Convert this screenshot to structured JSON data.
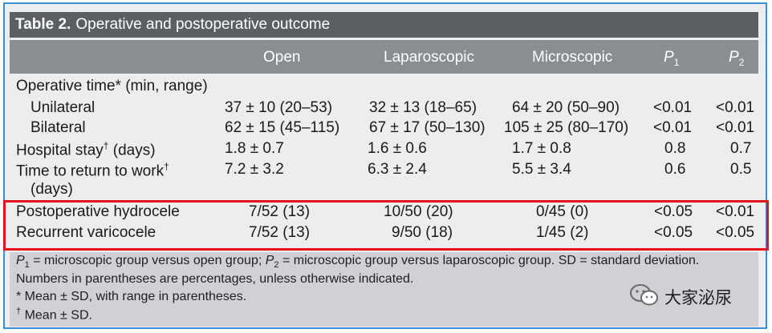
{
  "table": {
    "title_label": "Table 2.",
    "title_text": "Operative and postoperative outcome",
    "headers": {
      "open": "Open",
      "laparoscopic": "Laparoscopic",
      "microscopic": "Microscopic",
      "p1": "P",
      "p1_sub": "1",
      "p2": "P",
      "p2_sub": "2"
    },
    "rows": [
      {
        "label": "Operative time* (min, range)",
        "open": "",
        "lap": "",
        "micro": "",
        "p1": "",
        "p2": ""
      },
      {
        "label": "Unilateral",
        "open": "37 ± 10 (20–53)",
        "lap": "32 ± 13 (18–65)",
        "micro": "64 ± 20 (50–90)",
        "p1": "<0.01",
        "p2": "<0.01"
      },
      {
        "label": "Bilateral",
        "open": "62 ± 15 (45–115)",
        "lap": "67 ± 17 (50–130)",
        "micro": "105 ± 25 (80–170)",
        "p1": "<0.01",
        "p2": "<0.01"
      },
      {
        "label": "Hospital stay",
        "label_sup": "†",
        "label_tail": " (days)",
        "open": "1.8 ± 0.7",
        "lap": "1.6 ± 0.6",
        "micro": "1.7 ± 0.8",
        "p1": "0.8",
        "p2": "0.7"
      },
      {
        "label": "Time to return to work",
        "label_sup": "†",
        "open": "7.2 ± 3.2",
        "lap": "6.3 ± 2.4",
        "micro": "5.5 ± 3.4",
        "p1": "0.6",
        "p2": "0.5"
      },
      {
        "label": "(days)",
        "open": "",
        "lap": "",
        "micro": "",
        "p1": "",
        "p2": ""
      },
      {
        "label": "Postoperative hydrocele",
        "open": "7/52 (13)",
        "lap": "10/50 (20)",
        "micro": "0/45 (0)",
        "p1": "<0.05",
        "p2": "<0.01"
      },
      {
        "label": "Recurrent varicocele",
        "open": "7/52 (13)",
        "lap": "9/50 (18)",
        "micro": "1/45 (2)",
        "p1": "<0.05",
        "p2": "<0.05"
      }
    ],
    "footnotes": {
      "line1_p1": "P",
      "line1_p1_sub": "1",
      "line1_a": " = microscopic group versus open group; ",
      "line1_p2": "P",
      "line1_p2_sub": "2",
      "line1_b": " = microscopic group versus laparoscopic group. SD = standard deviation.",
      "line2": "Numbers in parentheses are percentages, unless otherwise indicated.",
      "line3": "* Mean ± SD, with range in parentheses.",
      "line4_sup": "†",
      "line4": " Mean ± SD."
    }
  },
  "watermark": {
    "text": "大家泌尿",
    "icon": "wechat-icon"
  },
  "colors": {
    "title_bar": "#5b5f64",
    "header_bar": "#8a8e93",
    "body_bg": "#ecedef",
    "footer_bg": "#cfd1d4",
    "highlight": "#e3161b",
    "frame_border": "#3b8fd6"
  }
}
